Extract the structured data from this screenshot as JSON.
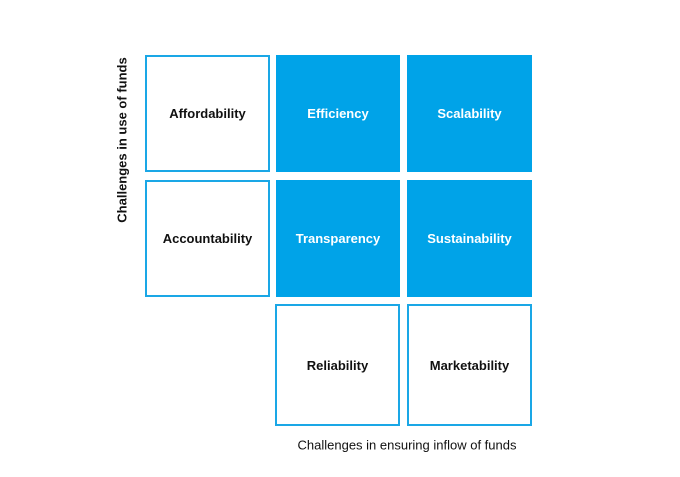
{
  "y_axis_label": "Challenges in use of funds",
  "x_axis_label": "Challenges in ensuring inflow of funds",
  "cells": {
    "affordability": "Affordability",
    "efficiency": "Efficiency",
    "scalability": "Scalability",
    "accountability": "Accountability",
    "transparency": "Transparency",
    "sustainability": "Sustainability",
    "reliability": "Reliability",
    "marketability": "Marketability"
  }
}
